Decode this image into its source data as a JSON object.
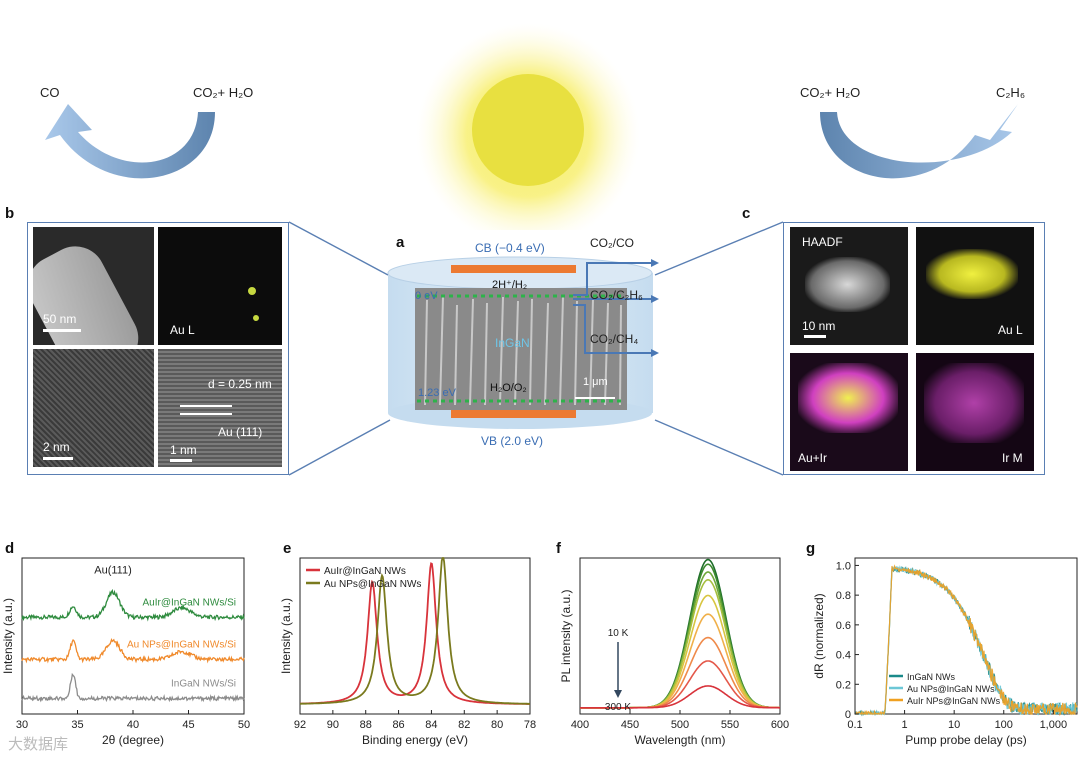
{
  "top": {
    "left_reactant": "CO₂+ H₂O",
    "left_product": "CO",
    "right_reactant": "CO₂+ H₂O",
    "right_product": "C₂H₆"
  },
  "panel_a": {
    "letter": "a",
    "cb_label": "CB (−0.4 eV)",
    "vb_label": "VB (2.0 eV)",
    "zero_ev": "0 eV",
    "e123_ev": "1.23 eV",
    "material": "InGaN",
    "h2_label": "2H⁺/H₂",
    "o2_label": "H₂O/O₂",
    "scale": "1 μm",
    "outputs": [
      "CO₂/CO",
      "CO₂/C₂H₆",
      "CO₂/CH₄"
    ]
  },
  "panel_b": {
    "letter": "b",
    "scale1": "50 nm",
    "map_label": "Au L",
    "scale3": "2 nm",
    "d_label": "d = 0.25 nm",
    "plane_label": "Au (111)",
    "scale4": "1 nm"
  },
  "panel_c": {
    "letter": "c",
    "haadf": "HAADF",
    "scale": "10 nm",
    "au_l": "Au L",
    "au_ir": "Au+Ir",
    "ir_m": "Ir M"
  },
  "chart_data": [
    {
      "panel": "d",
      "type": "line",
      "xlabel": "2θ (degree)",
      "ylabel": "Intensity (a.u.)",
      "xlim": [
        30,
        50
      ],
      "xticks": [
        30,
        35,
        40,
        45,
        50
      ],
      "peak_annotation": "Au(111)",
      "series": [
        {
          "name": "AuIr@InGaN NWs/Si",
          "color": "#2e8b3e",
          "offset": 0.62,
          "peaks": [
            [
              34.6,
              0.07,
              0.3
            ],
            [
              38.2,
              0.16,
              0.6
            ],
            [
              44.4,
              0.06,
              0.8
            ]
          ]
        },
        {
          "name": "Au NPs@InGaN NWs/Si",
          "color": "#f08a2c",
          "offset": 0.35,
          "peaks": [
            [
              34.6,
              0.12,
              0.25
            ],
            [
              38.2,
              0.12,
              0.6
            ],
            [
              44.4,
              0.05,
              0.8
            ]
          ]
        },
        {
          "name": "InGaN NWs/Si",
          "color": "#8c8c8c",
          "offset": 0.1,
          "peaks": [
            [
              34.6,
              0.16,
              0.22
            ]
          ]
        }
      ]
    },
    {
      "panel": "e",
      "type": "line",
      "xlabel": "Binding energy (eV)",
      "ylabel": "Intensity (a.u.)",
      "xlim": [
        92,
        78
      ],
      "xticks": [
        92,
        90,
        88,
        86,
        84,
        82,
        80,
        78
      ],
      "legend": "top-left",
      "series": [
        {
          "name": "AuIr@InGaN NWs",
          "color": "#d8333b",
          "peaks": [
            [
              87.6,
              0.78,
              0.35
            ],
            [
              84.0,
              0.9,
              0.35
            ]
          ]
        },
        {
          "name": "Au NPs@InGaN NWs",
          "color": "#7a7a1e",
          "peaks": [
            [
              87.0,
              0.82,
              0.35
            ],
            [
              83.3,
              0.95,
              0.35
            ]
          ]
        }
      ]
    },
    {
      "panel": "f",
      "type": "line",
      "xlabel": "Wavelength (nm)",
      "ylabel": "PL intensity (a.u.)",
      "xlim": [
        400,
        600
      ],
      "xticks": [
        400,
        450,
        500,
        550,
        600
      ],
      "center": 528,
      "width": 18,
      "temp_high": "10 K",
      "temp_low": "300 K",
      "amplitudes": [
        0.95,
        0.92,
        0.87,
        0.82,
        0.72,
        0.6,
        0.45,
        0.3,
        0.14
      ],
      "colors": [
        "#1f6e2a",
        "#3c8a2e",
        "#6ea83a",
        "#a6bf3e",
        "#d8c540",
        "#f0b04a",
        "#ef8a4a",
        "#e4584a",
        "#d8333b"
      ]
    },
    {
      "panel": "g",
      "type": "line",
      "xscale": "log",
      "xlabel": "Pump probe delay (ps)",
      "ylabel": "dR (normalized)",
      "xlim": [
        0.1,
        3000
      ],
      "ylim": [
        0,
        1.05
      ],
      "xtick_labels": [
        "0.1",
        "1",
        "10",
        "100",
        "1,000"
      ],
      "xtick_values": [
        0.1,
        1,
        10,
        100,
        1000
      ],
      "ytick_labels": [
        "0",
        "0.2",
        "0.4",
        "0.6",
        "0.8",
        "1.0"
      ],
      "ytick_values": [
        0,
        0.2,
        0.4,
        0.6,
        0.8,
        1.0
      ],
      "legend": "bottom-left",
      "series": [
        {
          "name": "InGaN NWs",
          "color": "#1a8a8a"
        },
        {
          "name": "Au NPs@InGaN NWs",
          "color": "#6cc7d6"
        },
        {
          "name": "AuIr NPs@InGaN NWs",
          "color": "#f0a020"
        }
      ]
    }
  ],
  "watermark": "大数据库"
}
